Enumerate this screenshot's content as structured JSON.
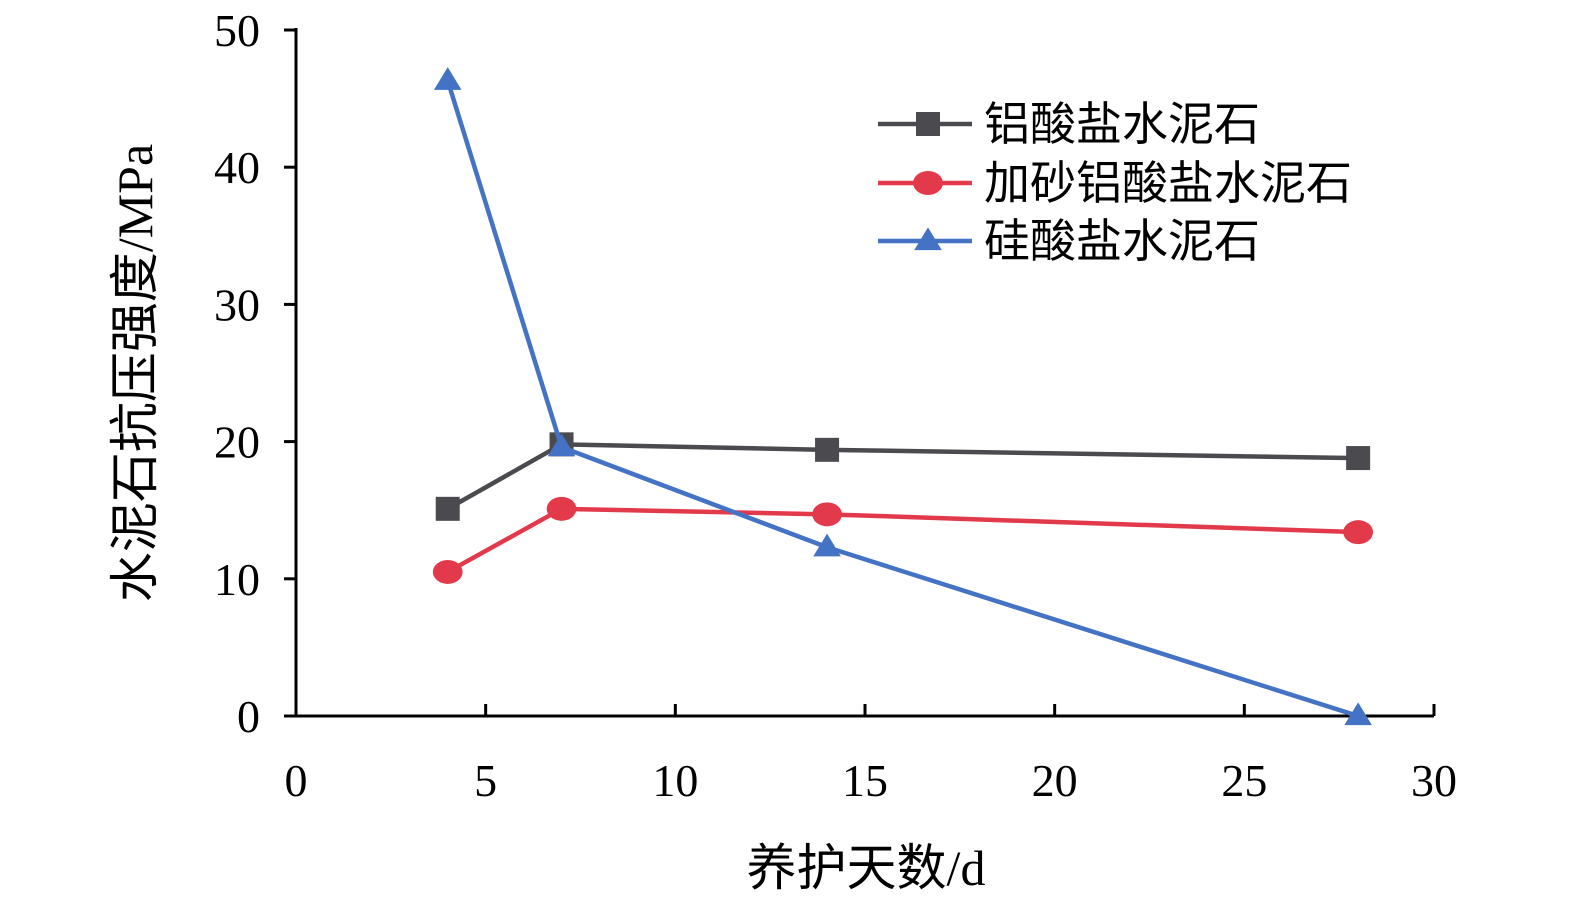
{
  "chart_data": {
    "type": "line",
    "title": "",
    "xlabel": "养护天数/d",
    "ylabel": "水泥石抗压强度/MPa",
    "xlim": [
      0,
      30
    ],
    "ylim": [
      0,
      50
    ],
    "xticks": [
      0,
      5,
      10,
      15,
      20,
      25,
      30
    ],
    "yticks": [
      0,
      10,
      20,
      30,
      40,
      50
    ],
    "grid": false,
    "legend_position": "top-right",
    "series": [
      {
        "name": "铝酸盐水泥石",
        "color": "#4a4a4f",
        "marker": "square",
        "x": [
          4,
          7,
          14,
          28
        ],
        "y": [
          15.1,
          19.8,
          19.4,
          18.8
        ]
      },
      {
        "name": "加砂铝酸盐水泥石",
        "color": "#e23a4b",
        "marker": "circle",
        "x": [
          4,
          7,
          14,
          28
        ],
        "y": [
          10.5,
          15.1,
          14.7,
          13.4
        ]
      },
      {
        "name": "硅酸盐水泥石",
        "color": "#4472c4",
        "marker": "triangle",
        "x": [
          4,
          7,
          14,
          28
        ],
        "y": [
          46.3,
          19.6,
          12.3,
          0
        ]
      }
    ]
  }
}
